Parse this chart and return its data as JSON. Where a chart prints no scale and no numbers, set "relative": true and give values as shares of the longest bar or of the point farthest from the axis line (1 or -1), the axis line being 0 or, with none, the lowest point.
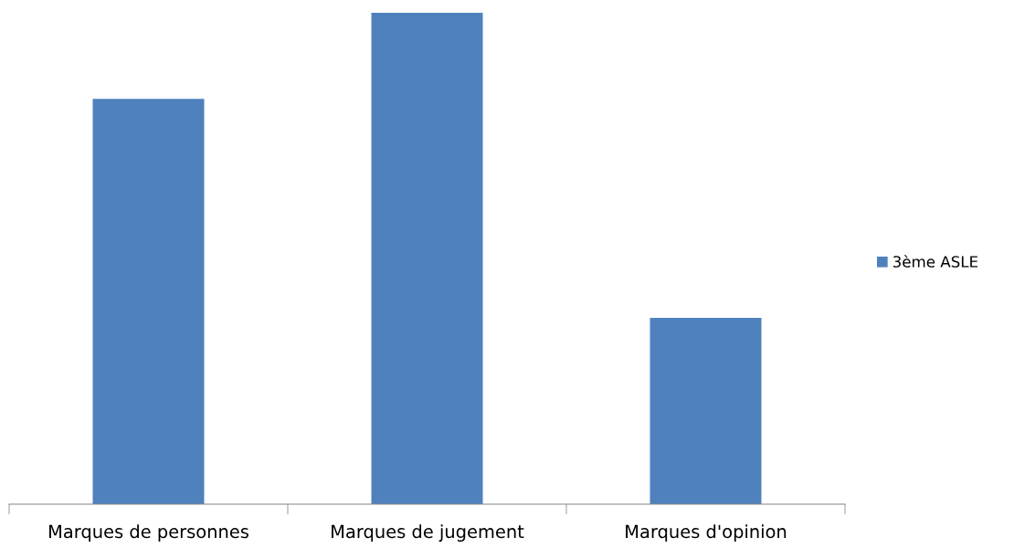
{
  "chart_data": {
    "type": "bar",
    "relative": true,
    "categories": [
      "Marques de personnes",
      "Marques de jugement",
      "Marques d'opinion"
    ],
    "series": [
      {
        "name": "3ème ASLE",
        "color": "#4f81bd",
        "values": [
          0.825,
          1,
          0.379
        ]
      }
    ],
    "grid": false,
    "legend": "right"
  }
}
